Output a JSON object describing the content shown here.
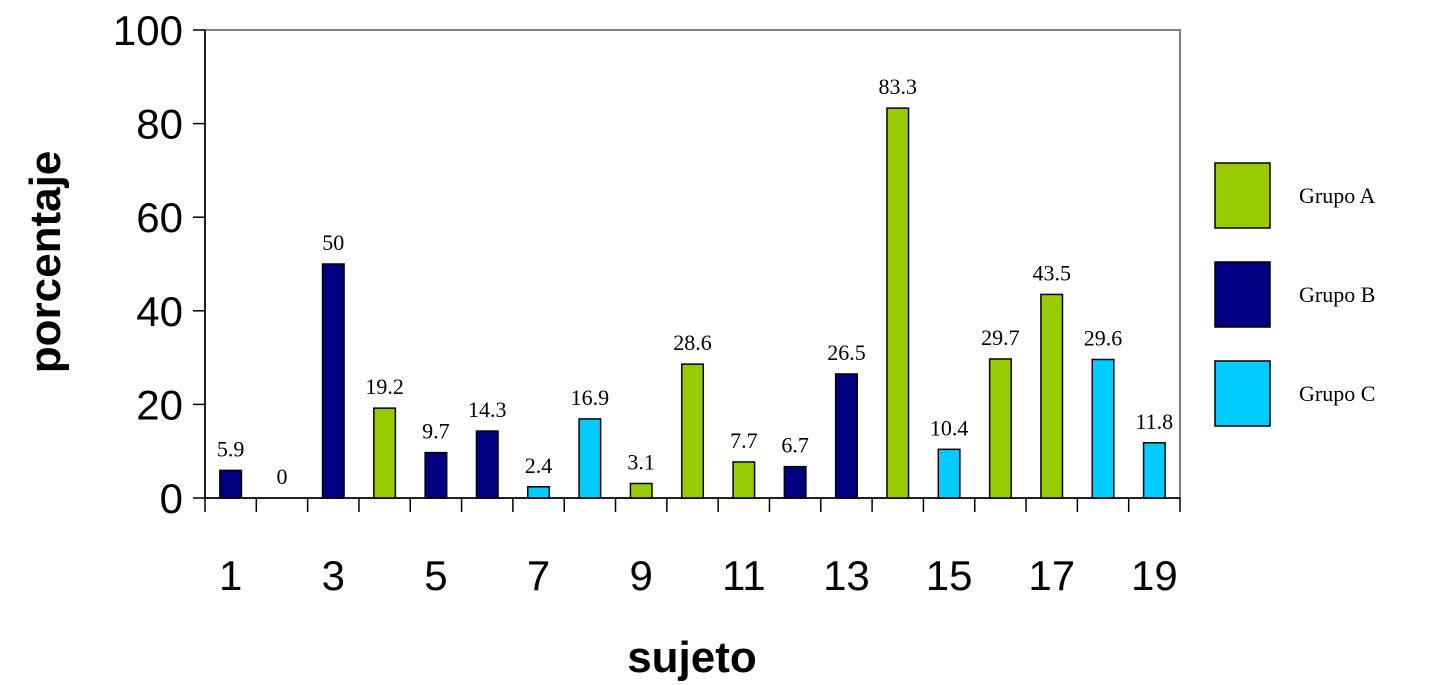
{
  "chart_data": {
    "type": "bar",
    "xlabel": "sujeto",
    "ylabel": "porcentaje",
    "ylim": [
      0,
      100
    ],
    "yticks": [
      "0",
      "20",
      "40",
      "60",
      "80",
      "100"
    ],
    "xticks": [
      "1",
      "3",
      "5",
      "7",
      "9",
      "11",
      "13",
      "15",
      "17",
      "19"
    ],
    "categories": [
      "1",
      "2",
      "3",
      "4",
      "5",
      "6",
      "7",
      "8",
      "9",
      "10",
      "11",
      "12",
      "13",
      "14",
      "15",
      "16",
      "17",
      "18",
      "19"
    ],
    "values": [
      5.9,
      0,
      50,
      19.2,
      9.7,
      14.3,
      2.4,
      16.9,
      3.1,
      28.6,
      7.7,
      6.7,
      26.5,
      83.3,
      10.4,
      29.7,
      43.5,
      29.6,
      11.8
    ],
    "labels": [
      "5.9",
      "0",
      "50",
      "19.2",
      "9.7",
      "14.3",
      "2.4",
      "16.9",
      "3.1",
      "28.6",
      "7.7",
      "6.7",
      "26.5",
      "83.3",
      "10.4",
      "29.7",
      "43.5",
      "29.6",
      "11.8"
    ],
    "groups": [
      "Grupo B",
      "Grupo B",
      "Grupo B",
      "Grupo A",
      "Grupo B",
      "Grupo B",
      "Grupo C",
      "Grupo C",
      "Grupo A",
      "Grupo A",
      "Grupo A",
      "Grupo B",
      "Grupo B",
      "Grupo A",
      "Grupo C",
      "Grupo A",
      "Grupo A",
      "Grupo C",
      "Grupo C"
    ],
    "legend": {
      "placement": "right",
      "entries": [
        {
          "name": "Grupo A",
          "color": "#99cc00"
        },
        {
          "name": "Grupo B",
          "color": "#000080"
        },
        {
          "name": "Grupo C",
          "color": "#00ccff"
        }
      ]
    },
    "grid": false
  }
}
